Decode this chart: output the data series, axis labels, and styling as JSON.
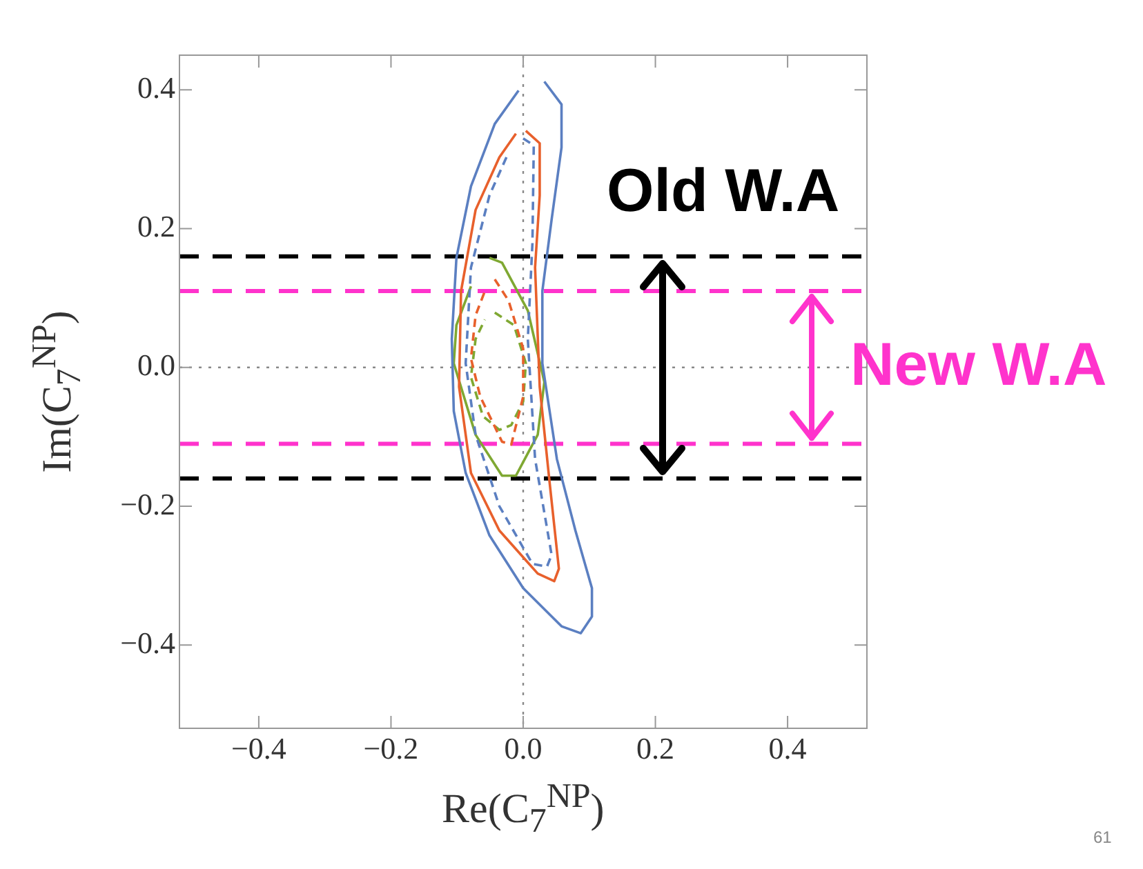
{
  "chart_data": {
    "type": "line",
    "xlabel": "Re(C$_{7}$$^{NP}$)",
    "ylabel": "Im(C$_{7}$$^{NP}$)",
    "xlim": [
      -0.52,
      0.52
    ],
    "ylim": [
      -0.52,
      0.45
    ],
    "xticks": [
      {
        "value": -0.4,
        "label": "−0.4"
      },
      {
        "value": -0.2,
        "label": "−0.2"
      },
      {
        "value": 0,
        "label": "0.0"
      },
      {
        "value": 0.2,
        "label": "0.2"
      },
      {
        "value": 0.4,
        "label": "0.4"
      }
    ],
    "yticks": [
      {
        "value": -0.4,
        "label": "−0.4"
      },
      {
        "value": -0.2,
        "label": "−0.2"
      },
      {
        "value": 0,
        "label": "0.0"
      },
      {
        "value": 0.2,
        "label": "0.2"
      },
      {
        "value": 0.4,
        "label": "0.4"
      }
    ],
    "grid": false,
    "legend": false,
    "marker": "none",
    "series": [
      {
        "color": "#5b7fc1",
        "line_style": "solid",
        "x": [
          0.032,
          0.058,
          0.058,
          0.043,
          0.029,
          0.029,
          0.051,
          0.079,
          0.104,
          0.104,
          0.087,
          0.058,
          0,
          -0.051,
          -0.087,
          -0.105,
          -0.108,
          -0.101,
          -0.079,
          -0.043,
          -0.007
        ],
        "values": [
          0.412,
          0.379,
          0.317,
          0.213,
          0.11,
          0.006,
          -0.132,
          -0.235,
          -0.318,
          -0.359,
          -0.383,
          -0.373,
          -0.318,
          -0.242,
          -0.152,
          -0.063,
          0.041,
          0.158,
          0.261,
          0.351,
          0.399
        ]
      },
      {
        "color": "#e8602c",
        "line_style": "solid",
        "x": [
          0.004,
          0.025,
          0.025,
          0.018,
          0.025,
          0.04,
          0.054,
          0.047,
          0.022,
          -0.036,
          -0.079,
          -0.097,
          -0.094,
          -0.072,
          -0.036,
          -0.011
        ],
        "values": [
          0.341,
          0.323,
          0.248,
          0.144,
          -0.028,
          -0.166,
          -0.29,
          -0.308,
          -0.297,
          -0.235,
          -0.152,
          -0.028,
          0.11,
          0.227,
          0.303,
          0.337
        ]
      },
      {
        "color": "#5b7fc1",
        "line_style": "dashed",
        "x": [
          0,
          0.016,
          0.014,
          0.007,
          0.018,
          0.043,
          0.036,
          0.014,
          -0.036,
          -0.072,
          -0.087,
          -0.079,
          -0.051,
          -0.022
        ],
        "values": [
          0.33,
          0.32,
          0.179,
          0.041,
          -0.132,
          -0.27,
          -0.287,
          -0.283,
          -0.2,
          -0.097,
          0.006,
          0.144,
          0.248,
          0.31
        ]
      },
      {
        "color": "#7fa832",
        "line_style": "solid",
        "x": [
          -0.051,
          -0.032,
          0.007,
          0.032,
          0.022,
          -0.011,
          -0.032,
          -0.072,
          -0.105,
          -0.101,
          -0.079
        ],
        "values": [
          0.158,
          0.151,
          0.082,
          -0.021,
          -0.097,
          -0.156,
          -0.156,
          -0.097,
          0.006,
          0.061,
          0.117
        ]
      },
      {
        "color": "#e8602c",
        "line_style": "dashed",
        "x": [
          -0.043,
          -0.022,
          0,
          0,
          -0.018,
          -0.032,
          -0.065,
          -0.079,
          -0.072,
          -0.058
        ],
        "values": [
          0.127,
          0.096,
          0.027,
          -0.042,
          -0.111,
          -0.107,
          -0.042,
          0.013,
          0.075,
          0.11
        ]
      },
      {
        "color": "#7fa832",
        "line_style": "dashed",
        "x": [
          -0.043,
          -0.014,
          0.004,
          0,
          -0.018,
          -0.036,
          -0.061,
          -0.079,
          -0.072,
          -0.058
        ],
        "values": [
          0.079,
          0.061,
          0.006,
          -0.049,
          -0.083,
          -0.09,
          -0.07,
          -0.014,
          0.041,
          0.069
        ]
      }
    ],
    "ref_lines": [
      {
        "axis": "x",
        "value": 0,
        "color": "#888888",
        "line_style": "dotted"
      },
      {
        "axis": "y",
        "value": 0,
        "color": "#888888",
        "line_style": "dotted"
      },
      {
        "axis": "y",
        "value": 0.16,
        "color": "#000000",
        "line_style": "dashed"
      },
      {
        "axis": "y",
        "value": -0.16,
        "color": "#000000",
        "line_style": "dashed"
      },
      {
        "axis": "y",
        "value": 0.11,
        "color": "#ff33cc",
        "line_style": "dashed"
      },
      {
        "axis": "y",
        "value": -0.11,
        "color": "#ff33cc",
        "line_style": "dashed"
      }
    ],
    "annotations": [
      "Old W.A",
      "New W.A",
      "61"
    ]
  }
}
